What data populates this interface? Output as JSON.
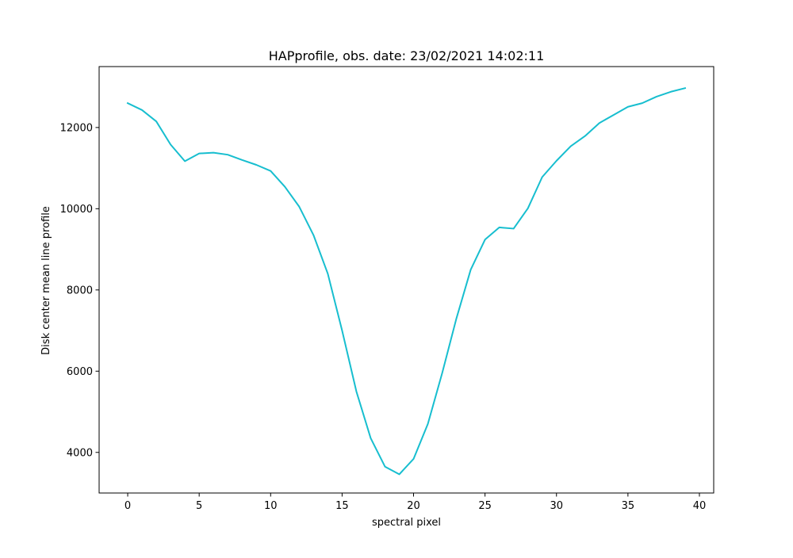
{
  "chart_data": {
    "type": "line",
    "title": "HAPprofile, obs. date: 23/02/2021 14:02:11",
    "xlabel": "spectral pixel",
    "ylabel": "Disk center mean line profile",
    "xlim": [
      -2,
      41
    ],
    "ylim": [
      3000,
      13500
    ],
    "xticks": [
      0,
      5,
      10,
      15,
      20,
      25,
      30,
      35,
      40
    ],
    "xtick_labels": [
      "0",
      "5",
      "10",
      "15",
      "20",
      "25",
      "30",
      "35",
      "40"
    ],
    "yticks": [
      4000,
      6000,
      8000,
      10000,
      12000
    ],
    "ytick_labels": [
      "4000",
      "6000",
      "8000",
      "10000",
      "12000"
    ],
    "grid": false,
    "legend": "none",
    "series": [
      {
        "color": "#17becf",
        "x": [
          0,
          1,
          2,
          3,
          4,
          5,
          6,
          7,
          8,
          9,
          10,
          11,
          12,
          13,
          14,
          15,
          16,
          17,
          18,
          19,
          20,
          21,
          22,
          23,
          24,
          25,
          26,
          27,
          28,
          29,
          30,
          31,
          32,
          33,
          34,
          35,
          36,
          37,
          38,
          39
        ],
        "values": [
          12600,
          12430,
          12150,
          11580,
          11170,
          11360,
          11380,
          11330,
          11200,
          11080,
          10930,
          10540,
          10050,
          9350,
          8400,
          7000,
          5500,
          4350,
          3650,
          3460,
          3840,
          4700,
          5950,
          7300,
          8500,
          9240,
          9540,
          9510,
          10010,
          10780,
          11180,
          11540,
          11790,
          12110,
          12310,
          12510,
          12600,
          12760,
          12880,
          12970
        ]
      }
    ]
  }
}
